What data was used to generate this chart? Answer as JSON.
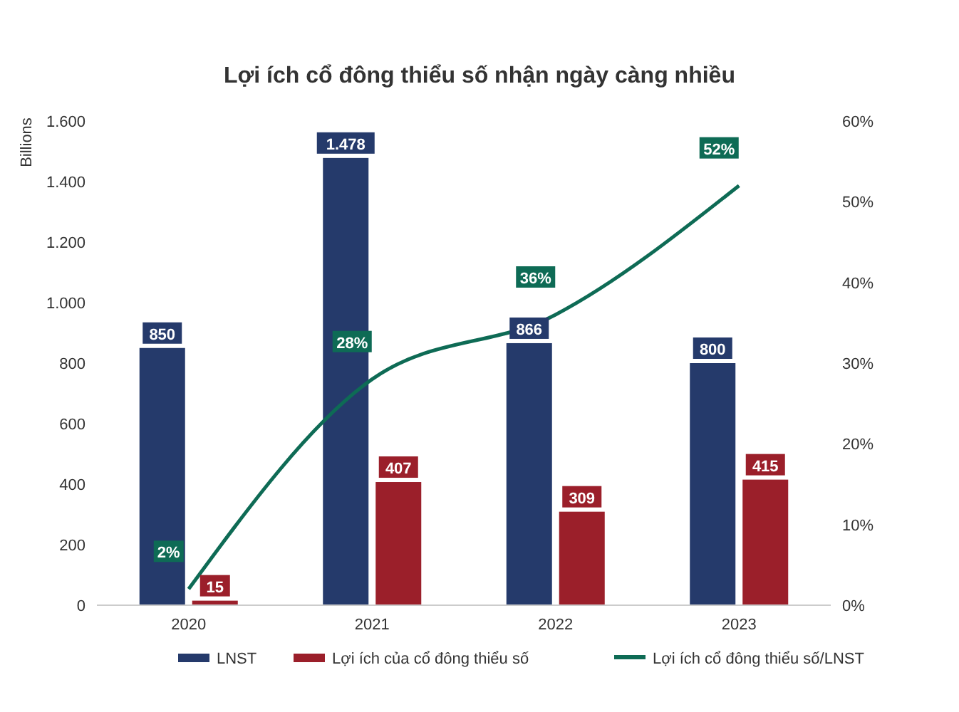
{
  "chart_data": {
    "type": "bar",
    "title": "Lợi ích cổ đông thiểu số nhận ngày càng nhiều",
    "ylabel": "Billions",
    "categories": [
      "2020",
      "2021",
      "2022",
      "2023"
    ],
    "series": [
      {
        "name": "LNST",
        "color": "#253a6b",
        "values": [
          850,
          1478,
          866,
          800
        ],
        "value_labels": [
          "850",
          "1.478",
          "866",
          "800"
        ]
      },
      {
        "name": "Lợi ích của cổ đông thiểu số",
        "color": "#9b1f2a",
        "values": [
          15,
          407,
          309,
          415
        ],
        "value_labels": [
          "15",
          "407",
          "309",
          "415"
        ]
      },
      {
        "name": "Lợi ích cổ đông thiểu số/LNST",
        "type": "line",
        "axis": "y2",
        "color": "#0e6b55",
        "values": [
          2,
          28,
          36,
          52
        ],
        "value_labels": [
          "2%",
          "28%",
          "36%",
          "52%"
        ]
      }
    ],
    "ylim": [
      0,
      1600
    ],
    "yticks": [
      0,
      200,
      400,
      600,
      800,
      {
        "value": 1000,
        "label": "1.000"
      },
      {
        "value": 1200,
        "label": "1.200"
      },
      {
        "value": 1400,
        "label": "1.400"
      },
      {
        "value": 1600,
        "label": "1.600"
      }
    ],
    "y2lim": [
      0,
      60
    ],
    "y2ticks": [
      {
        "value": 0,
        "label": "0%"
      },
      {
        "value": 10,
        "label": "10%"
      },
      {
        "value": 20,
        "label": "20%"
      },
      {
        "value": 30,
        "label": "30%"
      },
      {
        "value": 40,
        "label": "40%"
      },
      {
        "value": 50,
        "label": "50%"
      },
      {
        "value": 60,
        "label": "60%"
      }
    ],
    "legend": "bottom"
  }
}
